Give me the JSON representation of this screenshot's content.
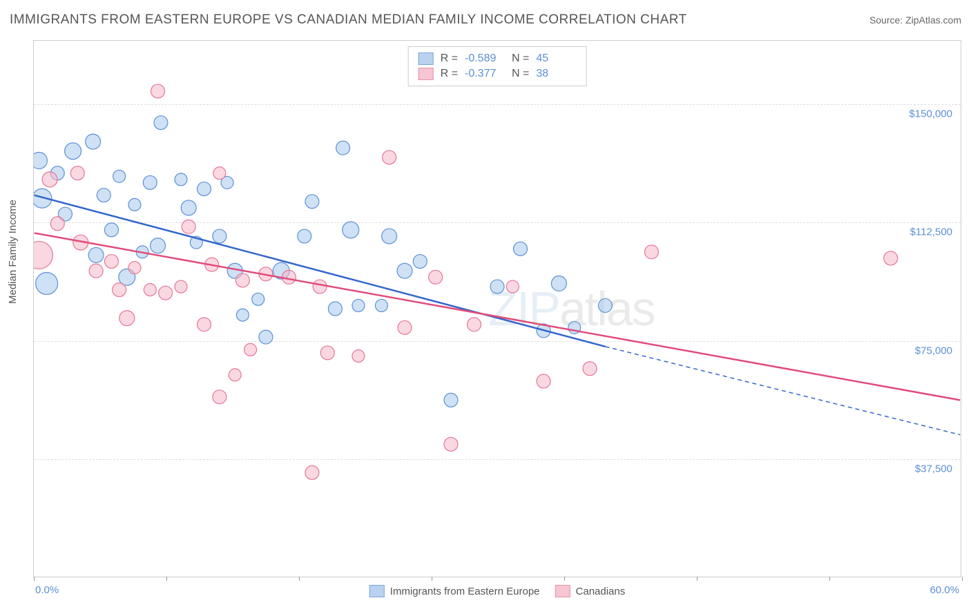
{
  "header": {
    "title": "IMMIGRANTS FROM EASTERN EUROPE VS CANADIAN MEDIAN FAMILY INCOME CORRELATION CHART",
    "source_label": "Source: ",
    "source_value": "ZipAtlas.com"
  },
  "chart": {
    "type": "scatter",
    "background_color": "#ffffff",
    "border_color": "#cccccc",
    "grid_color": "#dddddd",
    "axis_color": "#999999",
    "text_color": "#555555",
    "tick_label_color": "#5b8fd6",
    "y_label": "Median Family Income",
    "y_label_fontsize": 15,
    "xlim": [
      0,
      60
    ],
    "ylim": [
      0,
      170000
    ],
    "y_ticks": [
      {
        "value": 37500,
        "label": "$37,500"
      },
      {
        "value": 75000,
        "label": "$75,000"
      },
      {
        "value": 112500,
        "label": "$112,500"
      },
      {
        "value": 150000,
        "label": "$150,000"
      }
    ],
    "x_tick_positions": [
      0,
      8.57,
      17.14,
      25.71,
      34.29,
      42.86,
      51.43,
      60
    ],
    "x_min_label": "0.0%",
    "x_max_label": "60.0%",
    "watermark": {
      "zip": "ZIP",
      "atlas": "atlas"
    },
    "series": [
      {
        "id": "blue",
        "name": "Immigrants from Eastern Europe",
        "fill_color": "#a8c8ec",
        "stroke_color": "#5b8fd6",
        "fill_opacity": 0.55,
        "marker_r_base": 10,
        "trend_color": "#3366cc",
        "trend_width": 2.5,
        "trend_solid": {
          "x1": 0,
          "y1": 121000,
          "x2": 37,
          "y2": 73000
        },
        "trend_dashed": {
          "x1": 37,
          "y1": 73000,
          "x2": 60,
          "y2": 45000
        },
        "R": "-0.589",
        "N": "45",
        "points": [
          {
            "x": 0.5,
            "y": 120000,
            "r": 14
          },
          {
            "x": 0.8,
            "y": 93000,
            "r": 16
          },
          {
            "x": 0.3,
            "y": 132000,
            "r": 12
          },
          {
            "x": 1.5,
            "y": 128000,
            "r": 10
          },
          {
            "x": 2.5,
            "y": 135000,
            "r": 12
          },
          {
            "x": 2.0,
            "y": 115000,
            "r": 10
          },
          {
            "x": 3.8,
            "y": 138000,
            "r": 11
          },
          {
            "x": 4.5,
            "y": 121000,
            "r": 10
          },
          {
            "x": 4.0,
            "y": 102000,
            "r": 11
          },
          {
            "x": 5.5,
            "y": 127000,
            "r": 9
          },
          {
            "x": 5.0,
            "y": 110000,
            "r": 10
          },
          {
            "x": 6.0,
            "y": 95000,
            "r": 12
          },
          {
            "x": 6.5,
            "y": 118000,
            "r": 9
          },
          {
            "x": 7.5,
            "y": 125000,
            "r": 10
          },
          {
            "x": 7.0,
            "y": 103000,
            "r": 9
          },
          {
            "x": 8.0,
            "y": 105000,
            "r": 11
          },
          {
            "x": 8.2,
            "y": 144000,
            "r": 10
          },
          {
            "x": 9.5,
            "y": 126000,
            "r": 9
          },
          {
            "x": 10.0,
            "y": 117000,
            "r": 11
          },
          {
            "x": 10.5,
            "y": 106000,
            "r": 9
          },
          {
            "x": 11.0,
            "y": 123000,
            "r": 10
          },
          {
            "x": 12.5,
            "y": 125000,
            "r": 9
          },
          {
            "x": 12.0,
            "y": 108000,
            "r": 10
          },
          {
            "x": 13.5,
            "y": 83000,
            "r": 9
          },
          {
            "x": 13.0,
            "y": 97000,
            "r": 11
          },
          {
            "x": 14.5,
            "y": 88000,
            "r": 9
          },
          {
            "x": 15.0,
            "y": 76000,
            "r": 10
          },
          {
            "x": 16.0,
            "y": 97000,
            "r": 12
          },
          {
            "x": 17.5,
            "y": 108000,
            "r": 10
          },
          {
            "x": 18.0,
            "y": 119000,
            "r": 10
          },
          {
            "x": 19.5,
            "y": 85000,
            "r": 10
          },
          {
            "x": 20.5,
            "y": 110000,
            "r": 12
          },
          {
            "x": 20.0,
            "y": 136000,
            "r": 10
          },
          {
            "x": 21.0,
            "y": 86000,
            "r": 9
          },
          {
            "x": 22.5,
            "y": 86000,
            "r": 9
          },
          {
            "x": 23.0,
            "y": 108000,
            "r": 11
          },
          {
            "x": 24.0,
            "y": 97000,
            "r": 11
          },
          {
            "x": 25.0,
            "y": 100000,
            "r": 10
          },
          {
            "x": 27.0,
            "y": 56000,
            "r": 10
          },
          {
            "x": 30.0,
            "y": 92000,
            "r": 10
          },
          {
            "x": 31.5,
            "y": 104000,
            "r": 10
          },
          {
            "x": 33.0,
            "y": 78000,
            "r": 10
          },
          {
            "x": 34.0,
            "y": 93000,
            "r": 11
          },
          {
            "x": 35.0,
            "y": 79000,
            "r": 9
          },
          {
            "x": 37.0,
            "y": 86000,
            "r": 10
          }
        ]
      },
      {
        "id": "pink",
        "name": "Canadians",
        "fill_color": "#f5b8c8",
        "stroke_color": "#e57595",
        "fill_opacity": 0.55,
        "marker_r_base": 10,
        "trend_color": "#e14b7a",
        "trend_width": 2.5,
        "trend_solid": {
          "x1": 0,
          "y1": 109000,
          "x2": 60,
          "y2": 56000
        },
        "trend_dashed": null,
        "R": "-0.377",
        "N": "38",
        "points": [
          {
            "x": 0.3,
            "y": 102000,
            "r": 20
          },
          {
            "x": 1.0,
            "y": 126000,
            "r": 11
          },
          {
            "x": 1.5,
            "y": 112000,
            "r": 10
          },
          {
            "x": 2.8,
            "y": 128000,
            "r": 10
          },
          {
            "x": 3.0,
            "y": 106000,
            "r": 11
          },
          {
            "x": 4.0,
            "y": 97000,
            "r": 10
          },
          {
            "x": 5.0,
            "y": 100000,
            "r": 10
          },
          {
            "x": 5.5,
            "y": 91000,
            "r": 10
          },
          {
            "x": 6.5,
            "y": 98000,
            "r": 9
          },
          {
            "x": 6.0,
            "y": 82000,
            "r": 11
          },
          {
            "x": 7.5,
            "y": 91000,
            "r": 9
          },
          {
            "x": 8.5,
            "y": 90000,
            "r": 10
          },
          {
            "x": 8.0,
            "y": 154000,
            "r": 10
          },
          {
            "x": 9.5,
            "y": 92000,
            "r": 9
          },
          {
            "x": 10.0,
            "y": 111000,
            "r": 10
          },
          {
            "x": 11.0,
            "y": 80000,
            "r": 10
          },
          {
            "x": 11.5,
            "y": 99000,
            "r": 10
          },
          {
            "x": 12.0,
            "y": 128000,
            "r": 9
          },
          {
            "x": 12.0,
            "y": 57000,
            "r": 10
          },
          {
            "x": 13.0,
            "y": 64000,
            "r": 9
          },
          {
            "x": 13.5,
            "y": 94000,
            "r": 10
          },
          {
            "x": 14.0,
            "y": 72000,
            "r": 9
          },
          {
            "x": 15.0,
            "y": 96000,
            "r": 10
          },
          {
            "x": 16.5,
            "y": 95000,
            "r": 10
          },
          {
            "x": 18.0,
            "y": 33000,
            "r": 10
          },
          {
            "x": 18.5,
            "y": 92000,
            "r": 10
          },
          {
            "x": 19.0,
            "y": 71000,
            "r": 10
          },
          {
            "x": 21.0,
            "y": 70000,
            "r": 9
          },
          {
            "x": 23.0,
            "y": 133000,
            "r": 10
          },
          {
            "x": 24.0,
            "y": 79000,
            "r": 10
          },
          {
            "x": 26.0,
            "y": 95000,
            "r": 10
          },
          {
            "x": 27.0,
            "y": 42000,
            "r": 10
          },
          {
            "x": 28.5,
            "y": 80000,
            "r": 10
          },
          {
            "x": 31.0,
            "y": 92000,
            "r": 9
          },
          {
            "x": 33.0,
            "y": 62000,
            "r": 10
          },
          {
            "x": 36.0,
            "y": 66000,
            "r": 10
          },
          {
            "x": 40.0,
            "y": 103000,
            "r": 10
          },
          {
            "x": 55.5,
            "y": 101000,
            "r": 10
          }
        ]
      }
    ]
  },
  "top_legend": {
    "r_label": "R =",
    "n_label": "N ="
  }
}
